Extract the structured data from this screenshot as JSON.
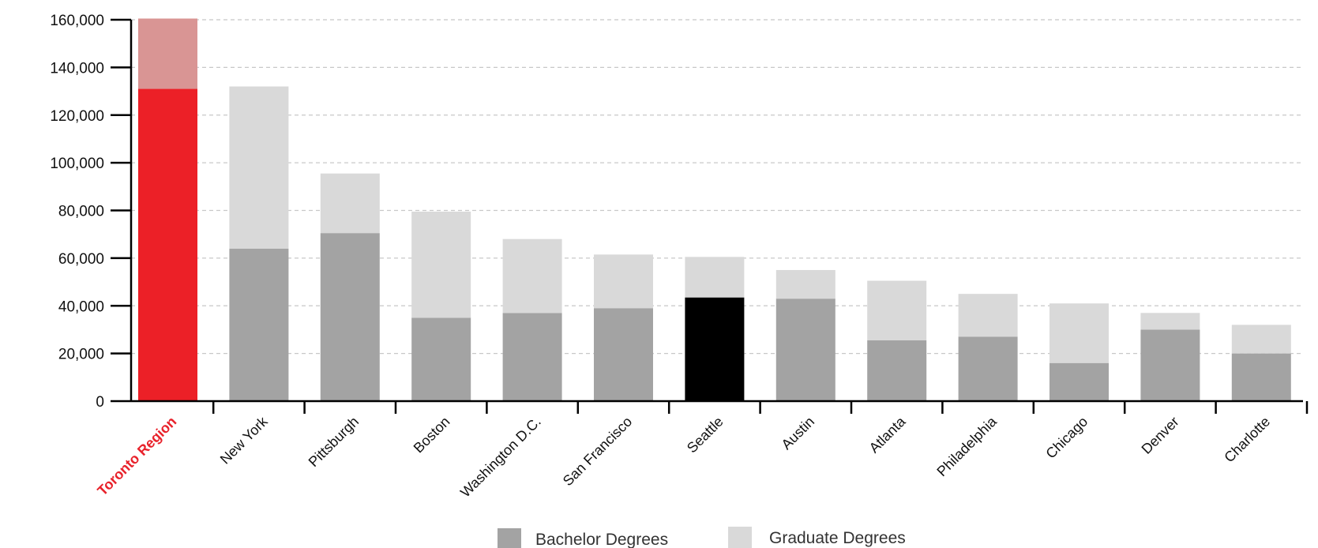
{
  "chart_data": {
    "type": "bar",
    "stacked": true,
    "categories": [
      "Toronto Region",
      "New York",
      "Pittsburgh",
      "Boston",
      "Washington D.C.",
      "San Francisco",
      "Seattle",
      "Austin",
      "Atlanta",
      "Philadelphia",
      "Chicago",
      "Denver",
      "Charlotte"
    ],
    "series": [
      {
        "name": "Bachelor Degrees",
        "values": [
          131000,
          64000,
          70500,
          35000,
          37000,
          39000,
          43500,
          43000,
          25500,
          27000,
          16000,
          30000,
          20000
        ],
        "color": "#a3a3a3"
      },
      {
        "name": "Graduate Degrees",
        "values": [
          29500,
          68000,
          25000,
          44500,
          31000,
          22500,
          17000,
          12000,
          25000,
          18000,
          25000,
          7000,
          12000
        ],
        "color": "#d9d9d9"
      }
    ],
    "highlight": {
      "Toronto Region": {
        "bachelor_color": "#ec2027",
        "graduate_color": "#d99594",
        "label_color": "#e8222b"
      },
      "Seattle": {
        "bachelor_color": "#000000"
      }
    },
    "ylim": [
      0,
      160000
    ],
    "yticks": [
      "0",
      "20,000",
      "40,000",
      "60,000",
      "80,000",
      "100,000",
      "120,000",
      "140,000",
      "160,000"
    ],
    "grid": true,
    "legend_position": "bottom-center",
    "title": "",
    "xlabel": "",
    "ylabel": ""
  }
}
